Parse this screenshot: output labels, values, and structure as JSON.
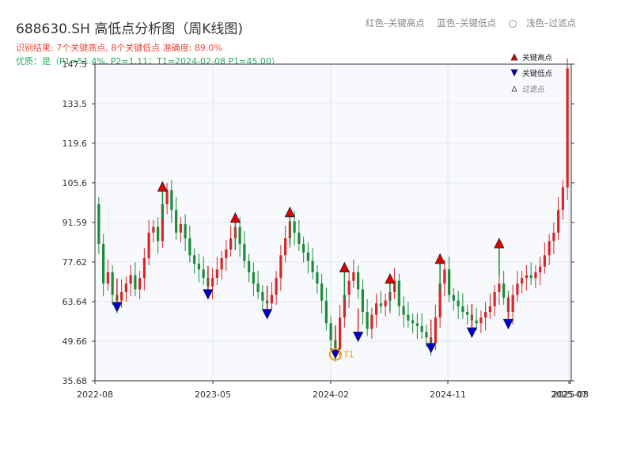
{
  "header": {
    "title": "688630.SH 高低点分析图（周K线图)",
    "subtitle_result": "识别结果: 7个关键高点, 8个关键低点   准确度: 89.0%",
    "subtitle_quality": "优质：是（P1=51.4%, P2=1.11；T1=2024-02-08 P1=45.00）",
    "legend_text": [
      "红色–关键高点",
      "蓝色–关键低点",
      "浅色–过滤点"
    ]
  },
  "chart_data": {
    "type": "candlestick",
    "y_ticks": [
      35.68,
      49.66,
      63.64,
      77.62,
      91.59,
      105.6,
      119.6,
      133.5,
      147.5
    ],
    "y_tick_labels": [
      "35.68",
      "49.66",
      "63.64",
      "77.62",
      "91.59",
      "105.6",
      "119.6",
      "133.5",
      "147.5"
    ],
    "ylim": [
      35.68,
      147.5
    ],
    "x_ticks": [
      "2022-08",
      "2023-05",
      "2024-02",
      "2024-11",
      "2025-07",
      "2025-08"
    ],
    "legend": [
      "关键高点",
      "关键低点",
      "过滤点"
    ],
    "legend_position": "top-right",
    "colors": {
      "up": "#d62728",
      "down": "#1a8c3a",
      "high_marker": "#e00000",
      "low_marker": "#0000d0",
      "annotation": "#f39c12"
    },
    "annotation": {
      "label": "T1",
      "date": "2024-02-08",
      "price": 45.0
    },
    "key_highs": [
      {
        "index": 14,
        "price": 104.0
      },
      {
        "index": 30,
        "price": 93.0
      },
      {
        "index": 42,
        "price": 95.0
      },
      {
        "index": 54,
        "price": 75.5
      },
      {
        "index": 64,
        "price": 71.5
      },
      {
        "index": 75,
        "price": 78.5
      },
      {
        "index": 88,
        "price": 84.0
      }
    ],
    "key_lows": [
      {
        "index": 4,
        "price": 62.0
      },
      {
        "index": 24,
        "price": 66.5
      },
      {
        "index": 37,
        "price": 59.5
      },
      {
        "index": 52,
        "price": 45.5
      },
      {
        "index": 57,
        "price": 51.5
      },
      {
        "index": 73,
        "price": 47.5
      },
      {
        "index": 82,
        "price": 53.0
      },
      {
        "index": 90,
        "price": 56.0
      }
    ],
    "closes": [
      84,
      70,
      74,
      66,
      64,
      67,
      70,
      73,
      68,
      72,
      79,
      88,
      90,
      85,
      98,
      103,
      96,
      88,
      91,
      86,
      80,
      77,
      75,
      72,
      69,
      72,
      75,
      79,
      82,
      86,
      90,
      84,
      78,
      74,
      70,
      67,
      64,
      63,
      66,
      72,
      80,
      86,
      92,
      88,
      84,
      81,
      78,
      74,
      70,
      64,
      56,
      50,
      47,
      58,
      66,
      71,
      74,
      68,
      60,
      54,
      59,
      63,
      62,
      64,
      67,
      71,
      62,
      59,
      57,
      56,
      55,
      53,
      51,
      49,
      58,
      70,
      75,
      66,
      64,
      62,
      60,
      59,
      57,
      56,
      58,
      60,
      62,
      67,
      70,
      65,
      60,
      66,
      70,
      72,
      73,
      72,
      74,
      76,
      80,
      85,
      88,
      96,
      104,
      146
    ],
    "opens": [
      98,
      84,
      70,
      74,
      66,
      64,
      67,
      70,
      73,
      68,
      72,
      79,
      88,
      90,
      85,
      98,
      103,
      96,
      88,
      91,
      86,
      80,
      77,
      75,
      72,
      69,
      72,
      75,
      79,
      82,
      86,
      90,
      84,
      78,
      74,
      70,
      67,
      64,
      63,
      66,
      72,
      80,
      86,
      92,
      88,
      84,
      81,
      78,
      74,
      70,
      64,
      56,
      50,
      47,
      58,
      66,
      71,
      74,
      68,
      60,
      54,
      59,
      63,
      62,
      64,
      67,
      71,
      62,
      59,
      57,
      56,
      55,
      53,
      51,
      49,
      58,
      70,
      75,
      66,
      64,
      62,
      60,
      59,
      57,
      56,
      58,
      60,
      62,
      67,
      70,
      65,
      60,
      66,
      70,
      72,
      73,
      72,
      74,
      76,
      80,
      85,
      88,
      96,
      104
    ]
  }
}
